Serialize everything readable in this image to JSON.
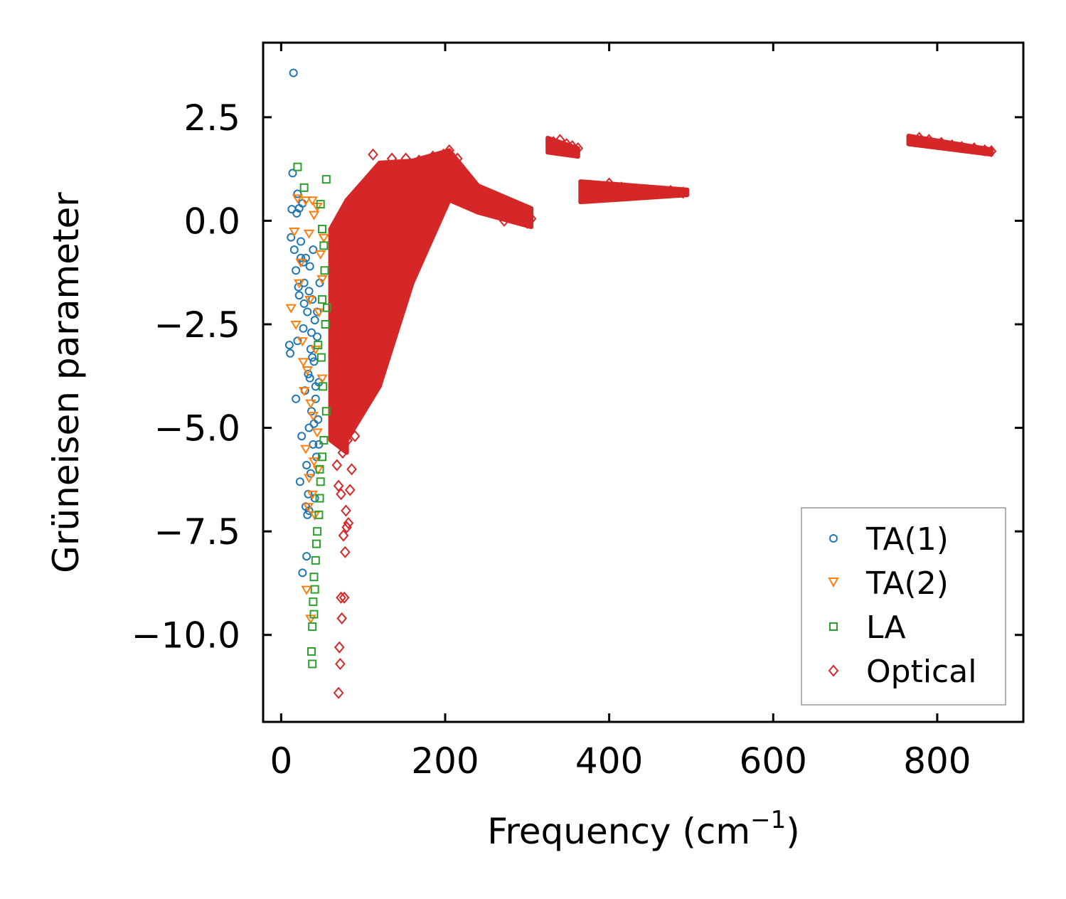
{
  "chart_data": {
    "type": "scatter",
    "title": "",
    "xlabel": "Frequency (cm",
    "xlabel_sup": "−1",
    "xlabel_end": ")",
    "ylabel": "Grüneisen parameter",
    "xlim": [
      -22,
      905
    ],
    "ylim": [
      -12.1,
      4.3
    ],
    "xticks": [
      0,
      200,
      400,
      600,
      800
    ],
    "xtick_labels": [
      "0",
      "200",
      "400",
      "600",
      "800"
    ],
    "yticks": [
      2.5,
      0.0,
      -2.5,
      -5.0,
      -7.5,
      -10.0
    ],
    "ytick_labels": [
      "2.5",
      "0.0",
      "−2.5",
      "−5.0",
      "−7.5",
      "−10.0"
    ],
    "grid": false,
    "legend_position": "lower-right",
    "series": [
      {
        "name": "TA(1)",
        "label": "TA(1)",
        "marker": "circle",
        "color": "#1f77b4",
        "points": [
          [
            15,
            3.57
          ],
          [
            14,
            1.15
          ],
          [
            20,
            0.65
          ],
          [
            13,
            0.28
          ],
          [
            22,
            0.3
          ],
          [
            26,
            0.42
          ],
          [
            19,
            0.18
          ],
          [
            12,
            -0.4
          ],
          [
            16,
            -0.7
          ],
          [
            24,
            -0.5
          ],
          [
            30,
            -0.9
          ],
          [
            18,
            -1.2
          ],
          [
            28,
            -1.5
          ],
          [
            35,
            -1.1
          ],
          [
            22,
            -1.8
          ],
          [
            38,
            -1.9
          ],
          [
            32,
            -2.2
          ],
          [
            41,
            -2.4
          ],
          [
            27,
            -2.6
          ],
          [
            44,
            -2.8
          ],
          [
            36,
            -3.1
          ],
          [
            10,
            -3.0
          ],
          [
            11,
            -3.2
          ],
          [
            40,
            -3.4
          ],
          [
            33,
            -3.7
          ],
          [
            46,
            -3.9
          ],
          [
            29,
            -4.1
          ],
          [
            42,
            -4.3
          ],
          [
            18,
            -4.3
          ],
          [
            37,
            -4.6
          ],
          [
            45,
            -4.8
          ],
          [
            34,
            -5.0
          ],
          [
            25,
            -5.2
          ],
          [
            39,
            -5.4
          ],
          [
            43,
            -5.7
          ],
          [
            31,
            -5.9
          ],
          [
            36,
            -6.1
          ],
          [
            23,
            -6.3
          ],
          [
            33,
            -6.6
          ],
          [
            41,
            -6.7
          ],
          [
            30,
            -6.9
          ],
          [
            32,
            -7.1
          ],
          [
            34,
            -7.0
          ],
          [
            31,
            -8.1
          ],
          [
            26,
            -8.5
          ],
          [
            20,
            -2.9
          ],
          [
            24,
            -0.9
          ],
          [
            34,
            -1.7
          ],
          [
            38,
            -3.3
          ],
          [
            42,
            -4.0
          ],
          [
            44,
            -2.2
          ],
          [
            39,
            -0.7
          ],
          [
            27,
            -1.0
          ],
          [
            47,
            -1.5
          ],
          [
            35,
            -3.8
          ],
          [
            28,
            -2.0
          ],
          [
            40,
            -4.9
          ],
          [
            46,
            -5.4
          ],
          [
            37,
            -2.7
          ],
          [
            21,
            -1.6
          ]
        ]
      },
      {
        "name": "TA(2)",
        "label": "TA(2)",
        "marker": "triangle-down",
        "color": "#ff7f0e",
        "points": [
          [
            16,
            -0.25
          ],
          [
            20,
            0.55
          ],
          [
            30,
            0.5
          ],
          [
            38,
            0.5
          ],
          [
            44,
            0.35
          ],
          [
            40,
            0.15
          ],
          [
            34,
            -0.3
          ],
          [
            22,
            -1.5
          ],
          [
            12,
            -2.1
          ],
          [
            18,
            -2.5
          ],
          [
            26,
            -2.9
          ],
          [
            32,
            -3.6
          ],
          [
            28,
            -4.1
          ],
          [
            36,
            -4.4
          ],
          [
            30,
            -5.5
          ],
          [
            40,
            -5.8
          ],
          [
            34,
            -6.2
          ],
          [
            45,
            -6.0
          ],
          [
            38,
            -6.6
          ],
          [
            33,
            -6.9
          ],
          [
            41,
            -7.1
          ],
          [
            31,
            -8.9
          ],
          [
            36,
            -9.6
          ],
          [
            48,
            -0.8
          ],
          [
            50,
            -1.4
          ],
          [
            46,
            -2.2
          ],
          [
            42,
            -3.1
          ],
          [
            50,
            -3.8
          ],
          [
            39,
            -4.7
          ],
          [
            44,
            -5.1
          ],
          [
            27,
            -3.4
          ],
          [
            24,
            -1.0
          ],
          [
            52,
            -0.4
          ],
          [
            35,
            -1.9
          ]
        ]
      },
      {
        "name": "LA",
        "label": "LA",
        "marker": "square",
        "color": "#2ca02c",
        "points": [
          [
            20,
            1.3
          ],
          [
            28,
            0.8
          ],
          [
            55,
            1.0
          ],
          [
            48,
            0.4
          ],
          [
            50,
            -0.2
          ],
          [
            52,
            -0.6
          ],
          [
            53,
            -1.2
          ],
          [
            50,
            -1.9
          ],
          [
            54,
            -2.5
          ],
          [
            49,
            -3.3
          ],
          [
            51,
            -4.0
          ],
          [
            55,
            -4.6
          ],
          [
            52,
            -5.3
          ],
          [
            50,
            -5.7
          ],
          [
            48,
            -6.3
          ],
          [
            47,
            -6.7
          ],
          [
            46,
            -7.1
          ],
          [
            44,
            -7.5
          ],
          [
            43,
            -7.8
          ],
          [
            42,
            -8.2
          ],
          [
            40,
            -8.6
          ],
          [
            41,
            -8.9
          ],
          [
            39,
            -9.2
          ],
          [
            40,
            -9.5
          ],
          [
            38,
            -9.8
          ],
          [
            37,
            -10.4
          ],
          [
            38,
            -10.7
          ],
          [
            56,
            -2.1
          ],
          [
            45,
            -3.0
          ],
          [
            47,
            -6.0
          ]
        ]
      },
      {
        "name": "Optical",
        "label": "Optical",
        "marker": "diamond",
        "color": "#d62728",
        "points": [
          [
            70,
            -11.4
          ],
          [
            72,
            -10.7
          ],
          [
            71,
            -10.3
          ],
          [
            74,
            -9.6
          ],
          [
            77,
            -9.1
          ],
          [
            73,
            -9.1
          ],
          [
            78,
            -8.0
          ],
          [
            80,
            -7.4
          ],
          [
            82,
            -7.3
          ],
          [
            76,
            -7.6
          ],
          [
            79,
            -7.0
          ],
          [
            70,
            -6.4
          ],
          [
            73,
            -6.6
          ],
          [
            84,
            -6.5
          ],
          [
            86,
            -6.0
          ],
          [
            68,
            -5.9
          ],
          [
            75,
            -5.6
          ],
          [
            81,
            -5.3
          ],
          [
            90,
            -5.2
          ],
          [
            88,
            -4.8
          ],
          [
            95,
            -4.4
          ],
          [
            100,
            -4.0
          ],
          [
            108,
            -3.5
          ],
          [
            112,
            -3.2
          ],
          [
            125,
            -2.6
          ],
          [
            133,
            -2.2
          ],
          [
            142,
            -1.6
          ],
          [
            160,
            -1.2
          ],
          [
            112,
            1.6
          ],
          [
            135,
            1.5
          ],
          [
            152,
            1.5
          ],
          [
            168,
            1.45
          ],
          [
            185,
            1.55
          ],
          [
            198,
            1.6
          ],
          [
            205,
            1.7
          ],
          [
            208,
            1.45
          ],
          [
            215,
            1.5
          ],
          [
            225,
            1.1
          ],
          [
            235,
            0.8
          ],
          [
            240,
            0.5
          ],
          [
            250,
            0.3
          ],
          [
            258,
            0.55
          ],
          [
            266,
            0.4
          ],
          [
            272,
            0.0
          ],
          [
            280,
            0.3
          ],
          [
            290,
            0.2
          ],
          [
            300,
            -0.05
          ],
          [
            305,
            0.05
          ],
          [
            332,
            1.9
          ],
          [
            340,
            1.95
          ],
          [
            348,
            1.85
          ],
          [
            355,
            1.8
          ],
          [
            362,
            1.75
          ],
          [
            375,
            0.55
          ],
          [
            385,
            0.8
          ],
          [
            400,
            0.9
          ],
          [
            415,
            0.8
          ],
          [
            430,
            0.75
          ],
          [
            445,
            0.72
          ],
          [
            460,
            0.7
          ],
          [
            475,
            0.72
          ],
          [
            490,
            0.68
          ],
          [
            778,
            2.0
          ],
          [
            790,
            1.95
          ],
          [
            805,
            1.88
          ],
          [
            818,
            1.82
          ],
          [
            830,
            1.78
          ],
          [
            845,
            1.75
          ],
          [
            858,
            1.7
          ],
          [
            866,
            1.68
          ]
        ],
        "dense_regions": [
          {
            "x_range": [
              60,
              80
            ],
            "y_top": [
              -0.2,
              0.5
            ],
            "y_bottom": [
              -5.3,
              -5.6
            ]
          },
          {
            "x_range": [
              80,
              120
            ],
            "y_top": [
              0.5,
              1.4
            ],
            "y_bottom": [
              -5.3,
              -4.0
            ]
          },
          {
            "x_range": [
              120,
              160
            ],
            "y_top": [
              1.4,
              1.45
            ],
            "y_bottom": [
              -4.0,
              -1.5
            ]
          },
          {
            "x_range": [
              160,
              205
            ],
            "y_top": [
              1.45,
              1.7
            ],
            "y_bottom": [
              -1.5,
              0.5
            ]
          },
          {
            "x_range": [
              205,
              240
            ],
            "y_top": [
              1.7,
              0.85
            ],
            "y_bottom": [
              0.5,
              0.2
            ]
          },
          {
            "x_range": [
              240,
              305
            ],
            "y_top": [
              0.85,
              0.3
            ],
            "y_bottom": [
              0.2,
              -0.15
            ]
          },
          {
            "x_range": [
              325,
              362
            ],
            "y_top": [
              2.0,
              1.75
            ],
            "y_bottom": [
              1.65,
              1.55
            ]
          },
          {
            "x_range": [
              365,
              495
            ],
            "y_top": [
              0.95,
              0.75
            ],
            "y_bottom": [
              0.45,
              0.62
            ]
          },
          {
            "x_range": [
              765,
              866
            ],
            "y_top": [
              2.05,
              1.72
            ],
            "y_bottom": [
              1.85,
              1.6
            ]
          }
        ]
      }
    ]
  }
}
